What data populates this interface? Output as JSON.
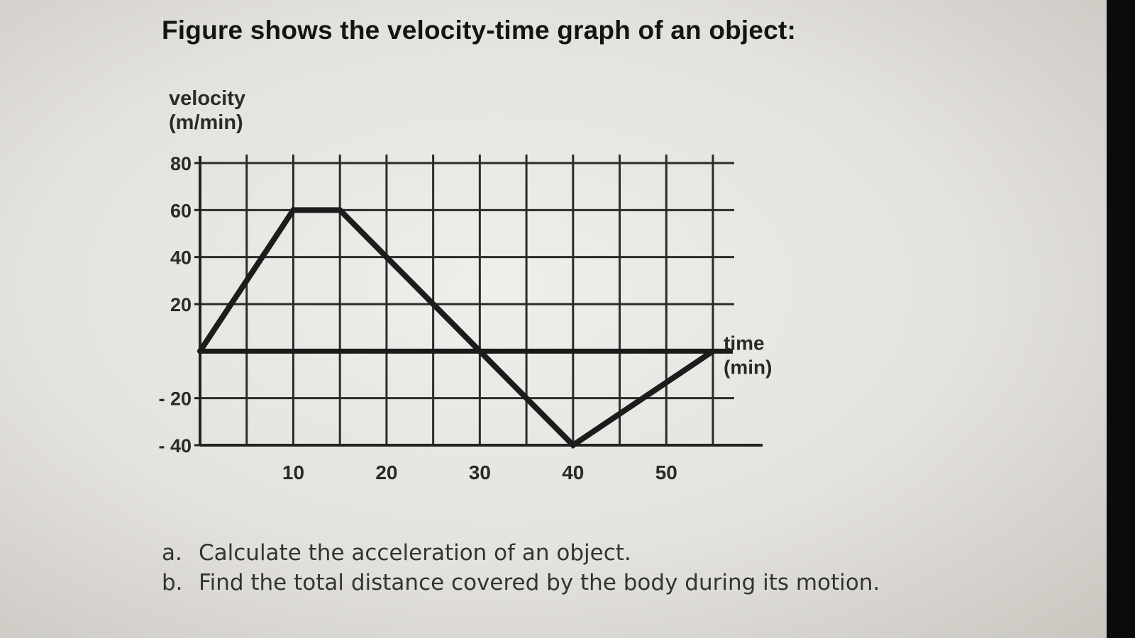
{
  "title": "Figure shows the velocity-time graph of an object:",
  "chart_data": {
    "type": "line",
    "title": "",
    "ylabel": [
      "velocity",
      "(m/min)"
    ],
    "xlabel": [
      "time",
      "(min)"
    ],
    "y_tick_labels": [
      {
        "value": 80,
        "label": "80"
      },
      {
        "value": 60,
        "label": "60"
      },
      {
        "value": 40,
        "label": "40"
      },
      {
        "value": 20,
        "label": "20"
      },
      {
        "value": -20,
        "label": "- 20"
      },
      {
        "value": -40,
        "label": "- 40"
      }
    ],
    "x_tick_labels": [
      {
        "value": 10,
        "label": "10"
      },
      {
        "value": 20,
        "label": "20"
      },
      {
        "value": 30,
        "label": "30"
      },
      {
        "value": 40,
        "label": "40"
      },
      {
        "value": 50,
        "label": "50"
      }
    ],
    "xlim": [
      0,
      55
    ],
    "ylim": [
      -40,
      80
    ],
    "grid": true,
    "x_grid_step": 5,
    "y_grid_step": 20,
    "series": [
      {
        "x": [
          0,
          10,
          15,
          30,
          40,
          55
        ],
        "y": [
          0,
          60,
          60,
          0,
          -40,
          0
        ]
      }
    ]
  },
  "questions": [
    {
      "marker": "a.",
      "text": "Calculate the acceleration of an object."
    },
    {
      "marker": "b.",
      "text": "Find the total distance covered by the body during its motion."
    }
  ]
}
